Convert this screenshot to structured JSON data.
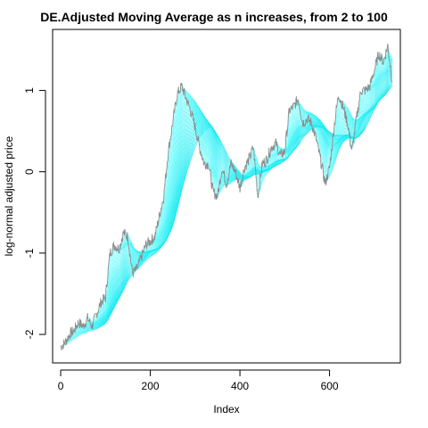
{
  "chart_data": {
    "type": "line",
    "title": "DE.Adjusted Moving Average as n increases, from 2 to 100",
    "xlabel": "Index",
    "ylabel": "log-normal adjusted price",
    "xlim": [
      -18,
      758
    ],
    "ylim": [
      -2.35,
      1.75
    ],
    "x_ticks": [
      0,
      200,
      400,
      600
    ],
    "y_ticks": [
      -2,
      -1,
      0,
      1
    ],
    "x_tick_labels": [
      "0",
      "200",
      "400",
      "600"
    ],
    "y_tick_labels": [
      "-2",
      "-1",
      "0",
      "1"
    ],
    "grid": false,
    "box": true,
    "colors": {
      "price": "#8c8c8c",
      "ma_light": "#7fffff",
      "ma_dark": "#10e8f0"
    },
    "ma_window_range": [
      2,
      100
    ],
    "series": [
      {
        "role": "price",
        "x": [
          0,
          10,
          20,
          30,
          40,
          50,
          60,
          70,
          80,
          90,
          100,
          110,
          120,
          130,
          140,
          150,
          160,
          170,
          180,
          190,
          200,
          210,
          220,
          230,
          240,
          250,
          260,
          270,
          280,
          290,
          300,
          310,
          320,
          330,
          340,
          350,
          360,
          370,
          380,
          390,
          400,
          410,
          420,
          430,
          440,
          450,
          460,
          470,
          480,
          490,
          500,
          510,
          520,
          530,
          540,
          550,
          560,
          570,
          580,
          590,
          600,
          610,
          620,
          630,
          640,
          650,
          660,
          670,
          680,
          690,
          700,
          710,
          720,
          730,
          740
        ],
        "values": [
          -2.15,
          -2.1,
          -2.0,
          -1.95,
          -1.85,
          -1.9,
          -1.8,
          -1.9,
          -1.75,
          -1.6,
          -1.55,
          -1.0,
          -0.9,
          -0.95,
          -0.75,
          -0.8,
          -1.25,
          -1.2,
          -1.05,
          -0.9,
          -0.85,
          -0.8,
          -0.55,
          -0.3,
          0.25,
          0.6,
          0.95,
          1.05,
          0.9,
          0.75,
          0.55,
          0.3,
          0.1,
          0.1,
          -0.25,
          -0.3,
          0.05,
          -0.15,
          0.1,
          0.0,
          -0.2,
          0.05,
          0.15,
          0.3,
          -0.3,
          0.1,
          0.15,
          0.3,
          0.35,
          0.2,
          0.25,
          0.75,
          0.8,
          0.9,
          0.6,
          0.65,
          0.6,
          0.4,
          0.15,
          -0.15,
          0.05,
          0.55,
          0.95,
          0.8,
          0.6,
          0.25,
          0.65,
          1.0,
          1.0,
          1.05,
          1.25,
          1.45,
          1.35,
          1.55,
          1.1
        ]
      }
    ]
  }
}
